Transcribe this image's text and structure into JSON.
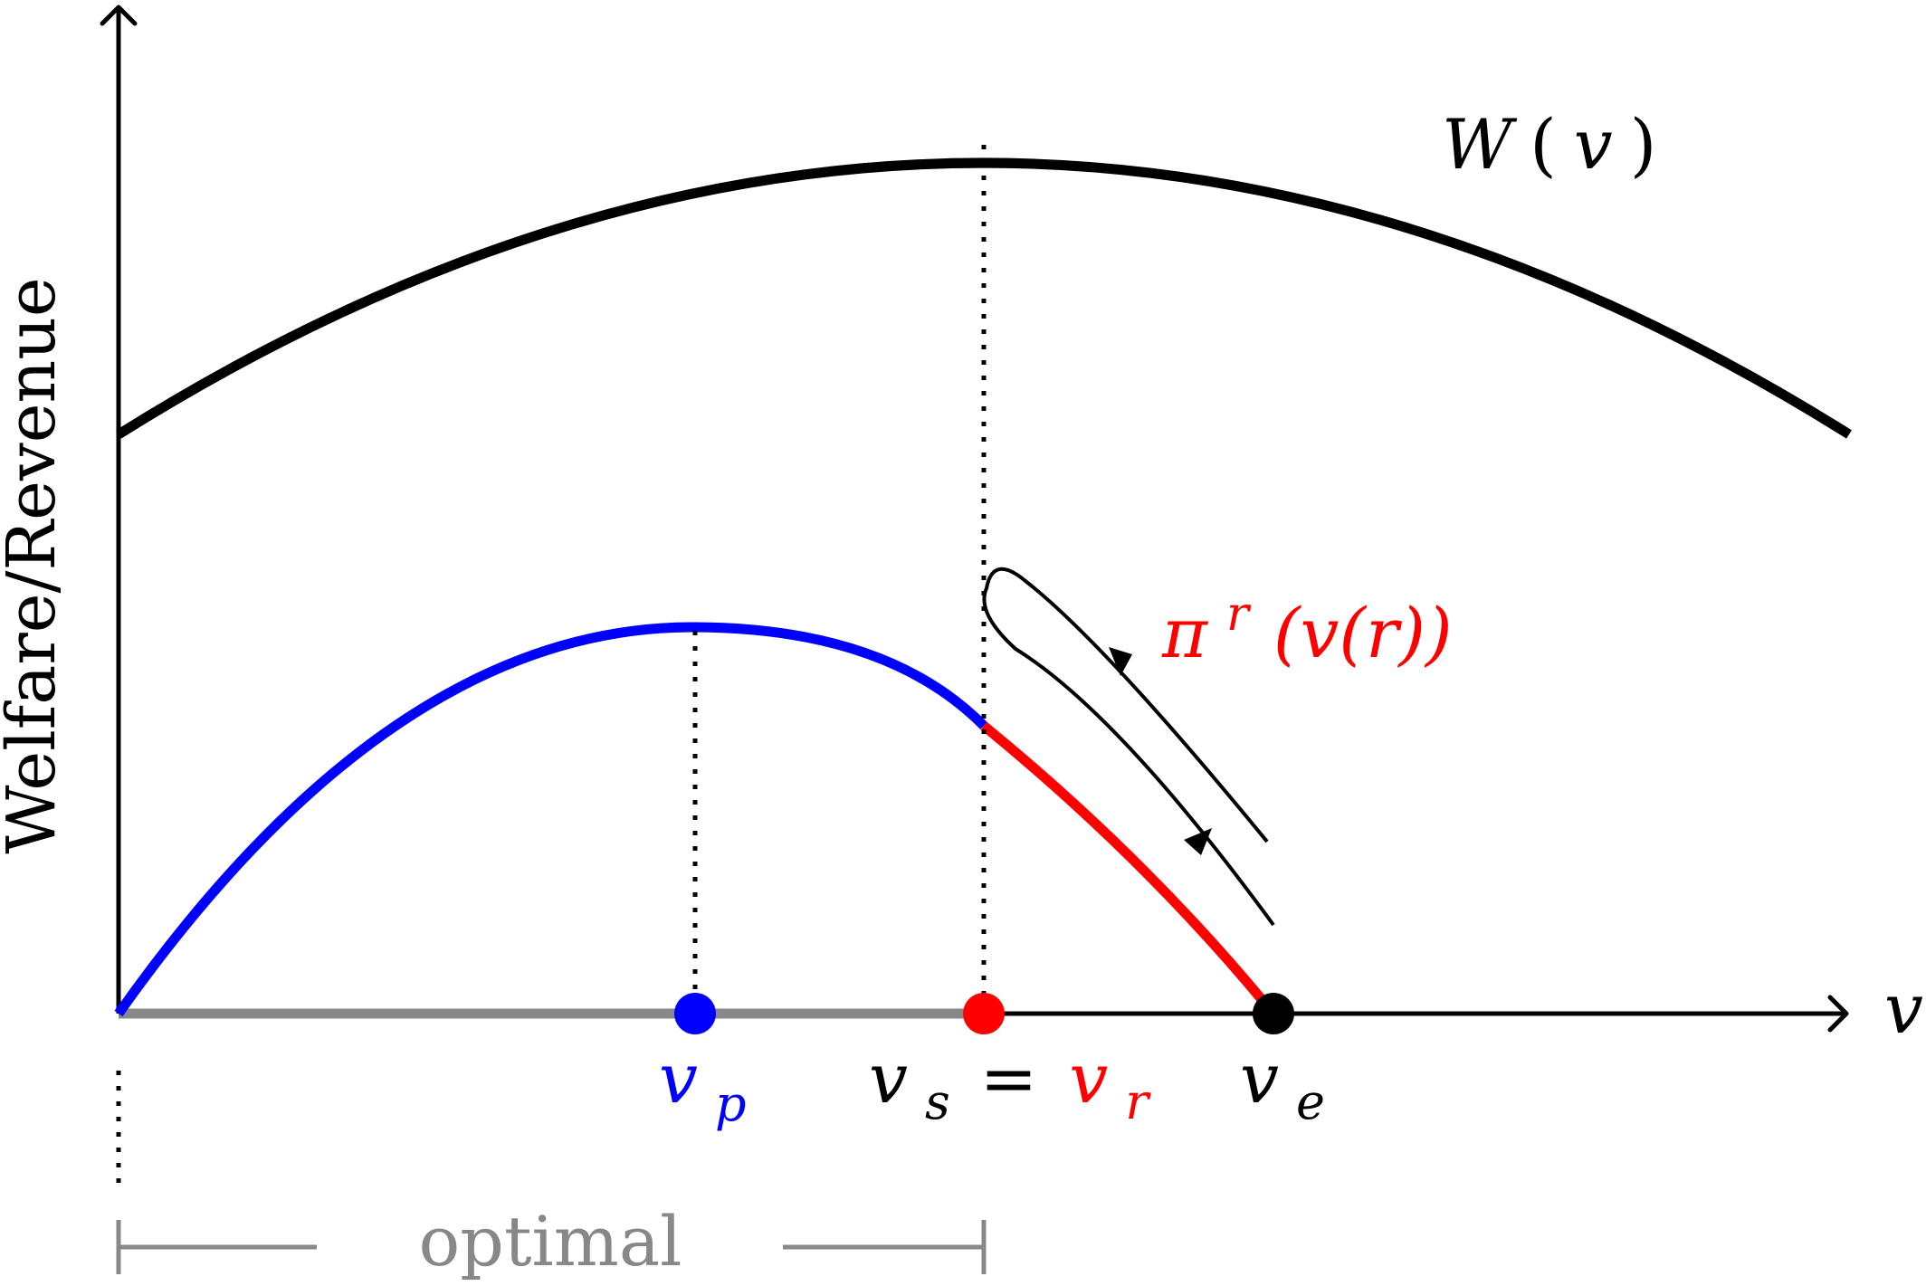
{
  "figure": {
    "y_axis_label": "Welfare/Revenue",
    "x_axis_label": "v",
    "curves": {
      "welfare": {
        "label": "W(v)",
        "label_main": "W",
        "label_open": "(",
        "label_arg": "v",
        "label_close": ")",
        "color": "#000000"
      },
      "revenue": {
        "label": "πr(v(r))",
        "label_main": "π",
        "label_sup": "r",
        "label_inner": "(v(r))",
        "low_segment_color": "#0000ff",
        "high_segment_color": "#ff0000"
      }
    },
    "points": {
      "v_p": {
        "label": "vp",
        "main": "v",
        "sub": "p",
        "color": "#0000ff"
      },
      "v_s_eq_v_r": {
        "label": "vs = vr",
        "left_main": "v",
        "left_sub": "s",
        "equals": "=",
        "right_main": "v",
        "right_sub": "r",
        "left_color": "#000000",
        "right_color": "#ff0000"
      },
      "v_e": {
        "label": "ve",
        "main": "v",
        "sub": "e",
        "color": "#000000"
      }
    },
    "optimal_range": {
      "label": "optimal",
      "color": "#888888"
    },
    "annotations": {
      "arrow_loop": "cycle arrow",
      "dotted_guides": "dotted"
    }
  }
}
